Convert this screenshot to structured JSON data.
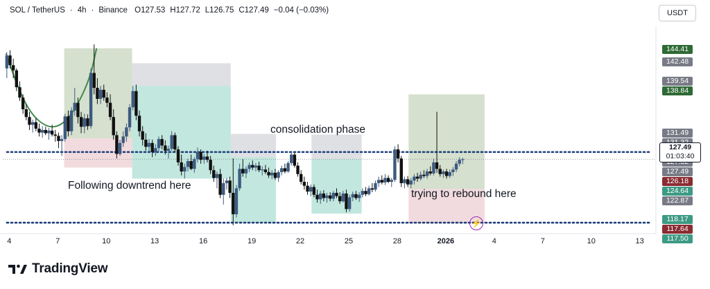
{
  "header": {
    "symbol": "SOL / TetherUS",
    "interval": "4h",
    "exchange": "Binance",
    "open": "O127.53",
    "high": "H127.72",
    "low": "L126.75",
    "close": "C127.49",
    "change": "−0.04 (−0.03%)",
    "separator": "·"
  },
  "currency_button": "USDT",
  "brand": "TradingView",
  "colors": {
    "up": "#3d5a80",
    "down": "#111111",
    "dotted_line": "#1c3d7a",
    "green_zone": "#8fd4c2",
    "gray_zone": "#c8cbd2",
    "red_zone": "#e9c3c8",
    "olive_zone": "#b9ccad",
    "curve": "#3f8a4a"
  },
  "price_labels": [
    {
      "text": "144.41",
      "price": 144.41,
      "color": "#2e6a35"
    },
    {
      "text": "142.48",
      "price": 142.48,
      "color": "#787b86"
    },
    {
      "text": "139.54",
      "price": 139.54,
      "color": "#787b86"
    },
    {
      "text": "138.84",
      "price": 138.84,
      "color": "#2e6a35"
    },
    {
      "text": "131.49",
      "price": 131.49,
      "color": "#787b86"
    },
    {
      "text": "131.32",
      "price": 131.32,
      "color": "#787b86"
    },
    {
      "text": "130.04",
      "price": 130.04,
      "color": "#787b86"
    },
    {
      "text": "127.82",
      "price": 127.82,
      "color": "#787b86"
    },
    {
      "text": "127.49",
      "price": 127.49,
      "color": "#787b86"
    },
    {
      "text": "126.18",
      "price": 126.18,
      "color": "#8b2c32"
    },
    {
      "text": "124.64",
      "price": 124.64,
      "color": "#3d9a83"
    },
    {
      "text": "122.87",
      "price": 122.87,
      "color": "#787b86"
    },
    {
      "text": "118.17",
      "price": 118.17,
      "color": "#3d9a83"
    },
    {
      "text": "117.64",
      "price": 117.64,
      "color": "#8b2c32"
    },
    {
      "text": "117.50",
      "price": 117.5,
      "color": "#3d9a83"
    }
  ],
  "current_price": {
    "price": "127.49",
    "countdown": "01:03:40"
  },
  "annotations": {
    "consolidation": "consolidation phase",
    "downtrend": "Following downtrend here",
    "rebound": "trying to rebound here"
  },
  "chart_data": {
    "type": "candlestick",
    "title": "SOL / TetherUS · 4h · Binance",
    "ylim": [
      116.0,
      148.0
    ],
    "x_tick_labels": [
      "4",
      "7",
      "10",
      "13",
      "16",
      "19",
      "22",
      "25",
      "28",
      "2026",
      "4",
      "7",
      "10",
      "13"
    ],
    "x_tick_day_index": [
      0,
      3,
      6,
      9,
      12,
      15,
      18,
      21,
      24,
      27,
      30,
      33,
      36,
      39
    ],
    "x_range_days": [
      -0.4,
      40.0
    ],
    "levels": {
      "upper_dotted": 128.6,
      "lower_dotted": 117.7
    },
    "zones": [
      {
        "name": "olive-tp-zone",
        "kind": "olive",
        "x0": 3.4,
        "x1": 7.6,
        "y0": 130.7,
        "y1": 144.6
      },
      {
        "name": "olive-sl-zone",
        "kind": "red",
        "x0": 3.4,
        "x1": 7.6,
        "y0": 126.2,
        "y1": 130.7
      },
      {
        "name": "gray-zone-1",
        "kind": "gray",
        "x0": 7.6,
        "x1": 13.7,
        "y0": 138.8,
        "y1": 142.3
      },
      {
        "name": "green-zone-1",
        "kind": "green",
        "x0": 7.6,
        "x1": 13.7,
        "y0": 124.5,
        "y1": 138.8
      },
      {
        "name": "gray-zone-2",
        "kind": "gray",
        "x0": 13.7,
        "x1": 16.5,
        "y0": 127.8,
        "y1": 131.4
      },
      {
        "name": "green-zone-2",
        "kind": "green",
        "x0": 13.7,
        "x1": 16.5,
        "y0": 117.7,
        "y1": 127.8
      },
      {
        "name": "gray-zone-3",
        "kind": "gray",
        "x0": 18.7,
        "x1": 21.8,
        "y0": 127.5,
        "y1": 131.3
      },
      {
        "name": "green-zone-3",
        "kind": "green",
        "x0": 18.7,
        "x1": 21.8,
        "y0": 119.1,
        "y1": 127.5
      },
      {
        "name": "rebound-tp-zone",
        "kind": "olive",
        "x0": 24.7,
        "x1": 29.4,
        "y0": 122.9,
        "y1": 137.5
      },
      {
        "name": "rebound-sl-zone",
        "kind": "red",
        "x0": 24.7,
        "x1": 29.4,
        "y0": 117.6,
        "y1": 122.9
      }
    ],
    "curve": [
      [
        -0.2,
        143.8
      ],
      [
        0.5,
        138.8
      ],
      [
        1.3,
        134.6
      ],
      [
        2.3,
        132.4
      ],
      [
        3.2,
        132.6
      ],
      [
        4.1,
        135.2
      ],
      [
        5.0,
        140.0
      ],
      [
        5.4,
        144.6
      ]
    ],
    "candles": [
      [
        -0.15,
        141.5,
        144.0,
        140.0,
        143.5
      ],
      [
        0.05,
        143.5,
        144.3,
        141.5,
        142.0
      ],
      [
        0.25,
        142.0,
        143.0,
        140.0,
        141.2
      ],
      [
        0.45,
        141.2,
        141.5,
        138.0,
        138.6
      ],
      [
        0.65,
        138.6,
        139.5,
        136.5,
        137.0
      ],
      [
        0.85,
        137.0,
        137.5,
        134.5,
        135.2
      ],
      [
        1.05,
        135.2,
        136.0,
        133.5,
        134.0
      ],
      [
        1.25,
        134.0,
        134.8,
        132.0,
        132.8
      ],
      [
        1.45,
        132.8,
        133.6,
        131.6,
        133.2
      ],
      [
        1.65,
        133.2,
        133.8,
        131.8,
        132.2
      ],
      [
        1.85,
        132.2,
        133.0,
        131.0,
        131.6
      ],
      [
        2.05,
        131.6,
        132.6,
        130.8,
        132.0
      ],
      [
        2.25,
        132.0,
        132.5,
        131.2,
        131.5
      ],
      [
        2.45,
        131.5,
        132.3,
        130.5,
        131.9
      ],
      [
        2.65,
        131.9,
        132.8,
        131.0,
        131.3
      ],
      [
        2.85,
        131.3,
        132.0,
        130.2,
        131.1
      ],
      [
        3.05,
        131.1,
        131.6,
        129.2,
        130.3
      ],
      [
        3.25,
        130.3,
        131.2,
        128.0,
        130.6
      ],
      [
        3.45,
        130.6,
        134.5,
        130.2,
        134.1
      ],
      [
        3.65,
        134.1,
        135.0,
        131.0,
        131.8
      ],
      [
        3.85,
        131.8,
        135.5,
        131.2,
        135.0
      ],
      [
        4.05,
        135.0,
        138.5,
        134.2,
        136.2
      ],
      [
        4.25,
        136.2,
        137.0,
        133.0,
        134.0
      ],
      [
        4.45,
        134.0,
        134.8,
        131.5,
        132.5
      ],
      [
        4.65,
        132.5,
        134.5,
        131.5,
        133.8
      ],
      [
        4.85,
        133.8,
        134.4,
        132.0,
        132.6
      ],
      [
        5.05,
        132.6,
        141.5,
        132.2,
        140.8
      ],
      [
        5.25,
        140.8,
        145.2,
        137.5,
        138.5
      ],
      [
        5.45,
        138.5,
        140.0,
        136.0,
        136.8
      ],
      [
        5.65,
        136.8,
        138.8,
        136.0,
        138.2
      ],
      [
        5.85,
        138.2,
        139.0,
        136.5,
        137.0
      ],
      [
        6.05,
        137.0,
        137.8,
        135.5,
        136.2
      ],
      [
        6.25,
        136.2,
        137.5,
        133.5,
        134.0
      ],
      [
        6.45,
        134.0,
        135.2,
        130.5,
        131.2
      ],
      [
        6.65,
        131.2,
        131.8,
        127.6,
        128.3
      ],
      [
        6.85,
        128.3,
        130.5,
        128.0,
        130.0
      ],
      [
        7.05,
        130.0,
        131.8,
        129.4,
        131.0
      ],
      [
        7.25,
        131.0,
        133.0,
        130.2,
        132.4
      ],
      [
        7.45,
        132.4,
        136.0,
        131.8,
        135.5
      ],
      [
        7.65,
        135.5,
        138.8,
        135.0,
        138.0
      ],
      [
        7.85,
        138.0,
        139.0,
        133.5,
        134.2
      ],
      [
        8.05,
        134.2,
        135.0,
        131.0,
        131.8
      ],
      [
        8.25,
        131.8,
        132.6,
        129.6,
        130.5
      ],
      [
        8.45,
        130.5,
        131.5,
        128.8,
        129.4
      ],
      [
        8.65,
        129.4,
        130.6,
        128.5,
        130.0
      ],
      [
        8.85,
        130.0,
        130.5,
        127.8,
        128.6
      ],
      [
        9.05,
        128.6,
        129.8,
        128.0,
        129.2
      ],
      [
        9.25,
        129.2,
        131.0,
        128.7,
        130.6
      ],
      [
        9.45,
        130.6,
        131.2,
        129.0,
        129.6
      ],
      [
        9.65,
        129.6,
        130.4,
        128.2,
        128.8
      ],
      [
        9.85,
        128.8,
        129.6,
        127.6,
        129.1
      ],
      [
        10.05,
        129.1,
        131.8,
        128.8,
        131.2
      ],
      [
        10.25,
        131.2,
        131.6,
        128.6,
        129.0
      ],
      [
        10.45,
        129.0,
        129.5,
        126.5,
        127.0
      ],
      [
        10.65,
        127.0,
        128.2,
        125.0,
        125.6
      ],
      [
        10.85,
        125.6,
        126.8,
        124.5,
        126.3
      ],
      [
        11.05,
        126.3,
        127.6,
        125.6,
        127.2
      ],
      [
        11.25,
        127.2,
        128.2,
        125.8,
        126.0
      ],
      [
        11.45,
        126.0,
        127.8,
        125.4,
        127.5
      ],
      [
        11.65,
        127.5,
        129.3,
        127.0,
        128.6
      ],
      [
        11.85,
        128.6,
        129.0,
        126.8,
        127.4
      ],
      [
        12.05,
        127.4,
        128.3,
        126.8,
        127.9
      ],
      [
        12.25,
        127.9,
        128.8,
        127.0,
        127.4
      ],
      [
        12.45,
        127.4,
        128.0,
        125.2,
        125.8
      ],
      [
        12.65,
        125.8,
        126.5,
        124.0,
        124.6
      ],
      [
        12.85,
        124.6,
        125.6,
        123.0,
        125.2
      ],
      [
        13.05,
        125.2,
        126.0,
        121.5,
        122.0
      ],
      [
        13.25,
        122.0,
        124.5,
        120.5,
        123.8
      ],
      [
        13.45,
        123.8,
        124.6,
        122.8,
        124.2
      ],
      [
        13.65,
        124.2,
        124.8,
        121.5,
        122.3
      ],
      [
        13.85,
        122.3,
        127.6,
        117.3,
        119.0
      ],
      [
        14.05,
        119.0,
        123.5,
        118.5,
        123.0
      ],
      [
        14.25,
        123.0,
        126.8,
        122.6,
        126.0
      ],
      [
        14.45,
        126.0,
        127.5,
        124.8,
        125.3
      ],
      [
        14.65,
        125.3,
        126.4,
        124.6,
        126.0
      ],
      [
        14.85,
        126.0,
        127.0,
        125.5,
        126.6
      ],
      [
        15.05,
        126.6,
        127.3,
        125.8,
        126.2
      ],
      [
        15.25,
        126.2,
        126.9,
        125.6,
        126.5
      ],
      [
        15.45,
        126.5,
        127.1,
        125.5,
        125.8
      ],
      [
        15.65,
        125.8,
        126.4,
        125.0,
        125.9
      ],
      [
        15.85,
        125.9,
        126.6,
        125.2,
        125.5
      ],
      [
        16.05,
        125.5,
        126.2,
        124.6,
        125.0
      ],
      [
        16.25,
        125.0,
        125.8,
        124.4,
        125.4
      ],
      [
        16.45,
        125.4,
        126.0,
        124.3,
        124.6
      ],
      [
        16.65,
        124.6,
        125.8,
        124.0,
        125.5
      ],
      [
        16.85,
        125.5,
        126.5,
        125.0,
        126.1
      ],
      [
        17.05,
        126.1,
        126.8,
        125.3,
        125.6
      ],
      [
        17.25,
        125.6,
        127.2,
        125.4,
        126.9
      ],
      [
        17.45,
        126.9,
        128.6,
        126.5,
        128.2
      ],
      [
        17.65,
        128.2,
        128.5,
        126.2,
        126.5
      ],
      [
        17.85,
        126.5,
        127.0,
        124.8,
        125.2
      ],
      [
        18.05,
        125.2,
        125.8,
        123.6,
        124.0
      ],
      [
        18.25,
        124.0,
        124.8,
        122.8,
        123.4
      ],
      [
        18.45,
        123.4,
        124.0,
        122.0,
        122.5
      ],
      [
        18.65,
        122.5,
        123.6,
        121.8,
        123.2
      ],
      [
        18.85,
        123.2,
        123.6,
        121.6,
        122.0
      ],
      [
        19.05,
        122.0,
        122.8,
        120.8,
        121.3
      ],
      [
        19.25,
        121.3,
        122.6,
        120.6,
        122.2
      ],
      [
        19.45,
        122.2,
        122.7,
        121.0,
        121.5
      ],
      [
        19.65,
        121.5,
        122.3,
        120.8,
        121.9
      ],
      [
        19.85,
        121.9,
        122.4,
        121.0,
        121.4
      ],
      [
        20.05,
        121.4,
        122.6,
        121.0,
        122.3
      ],
      [
        20.25,
        122.3,
        123.0,
        121.5,
        121.8
      ],
      [
        20.45,
        121.8,
        122.4,
        120.6,
        121.0
      ],
      [
        20.65,
        121.0,
        122.6,
        120.8,
        122.2
      ],
      [
        20.85,
        122.2,
        122.8,
        119.3,
        119.8
      ],
      [
        21.05,
        119.8,
        122.0,
        119.4,
        121.6
      ],
      [
        21.25,
        121.6,
        122.5,
        121.0,
        122.1
      ],
      [
        21.45,
        122.1,
        122.6,
        121.2,
        121.5
      ],
      [
        21.65,
        121.5,
        122.4,
        120.9,
        122.0
      ],
      [
        21.85,
        122.0,
        123.0,
        121.6,
        122.6
      ],
      [
        22.05,
        122.6,
        123.2,
        121.8,
        122.1
      ],
      [
        22.25,
        122.1,
        123.4,
        121.9,
        123.0
      ],
      [
        22.45,
        123.0,
        123.8,
        122.4,
        122.8
      ],
      [
        22.65,
        122.8,
        124.2,
        122.5,
        123.8
      ],
      [
        22.85,
        123.8,
        124.8,
        123.2,
        124.3
      ],
      [
        23.05,
        124.3,
        125.0,
        123.6,
        123.9
      ],
      [
        23.25,
        123.9,
        125.2,
        123.5,
        124.6
      ],
      [
        23.45,
        124.6,
        125.0,
        123.8,
        124.0
      ],
      [
        23.65,
        124.0,
        124.6,
        123.2,
        124.3
      ],
      [
        23.85,
        124.3,
        129.5,
        124.0,
        129.0
      ],
      [
        24.05,
        129.0,
        129.8,
        127.0,
        127.6
      ],
      [
        24.25,
        127.6,
        128.0,
        123.2,
        123.8
      ],
      [
        24.45,
        123.8,
        124.8,
        123.0,
        124.4
      ],
      [
        24.65,
        124.4,
        124.9,
        123.2,
        123.6
      ],
      [
        24.85,
        123.6,
        124.6,
        123.0,
        124.2
      ],
      [
        25.05,
        124.2,
        125.2,
        123.6,
        124.8
      ],
      [
        25.25,
        124.8,
        125.4,
        124.0,
        124.5
      ],
      [
        25.45,
        124.5,
        125.6,
        124.2,
        125.1
      ],
      [
        25.65,
        125.1,
        125.8,
        124.6,
        124.9
      ],
      [
        25.85,
        124.9,
        126.0,
        124.5,
        125.6
      ],
      [
        26.05,
        125.6,
        126.4,
        125.0,
        125.3
      ],
      [
        26.25,
        125.3,
        127.6,
        125.0,
        127.0
      ],
      [
        26.45,
        127.0,
        134.8,
        125.4,
        126.0
      ],
      [
        26.65,
        126.0,
        126.6,
        124.8,
        125.2
      ],
      [
        26.85,
        125.2,
        125.9,
        124.6,
        125.6
      ],
      [
        27.05,
        125.6,
        126.0,
        124.5,
        124.9
      ],
      [
        27.25,
        124.9,
        125.9,
        124.6,
        125.5
      ],
      [
        27.45,
        125.5,
        126.3,
        124.9,
        125.9
      ],
      [
        27.65,
        125.9,
        127.2,
        125.5,
        126.8
      ],
      [
        27.85,
        126.8,
        127.8,
        126.4,
        127.4
      ],
      [
        28.05,
        127.4,
        127.72,
        126.75,
        127.49
      ]
    ]
  }
}
